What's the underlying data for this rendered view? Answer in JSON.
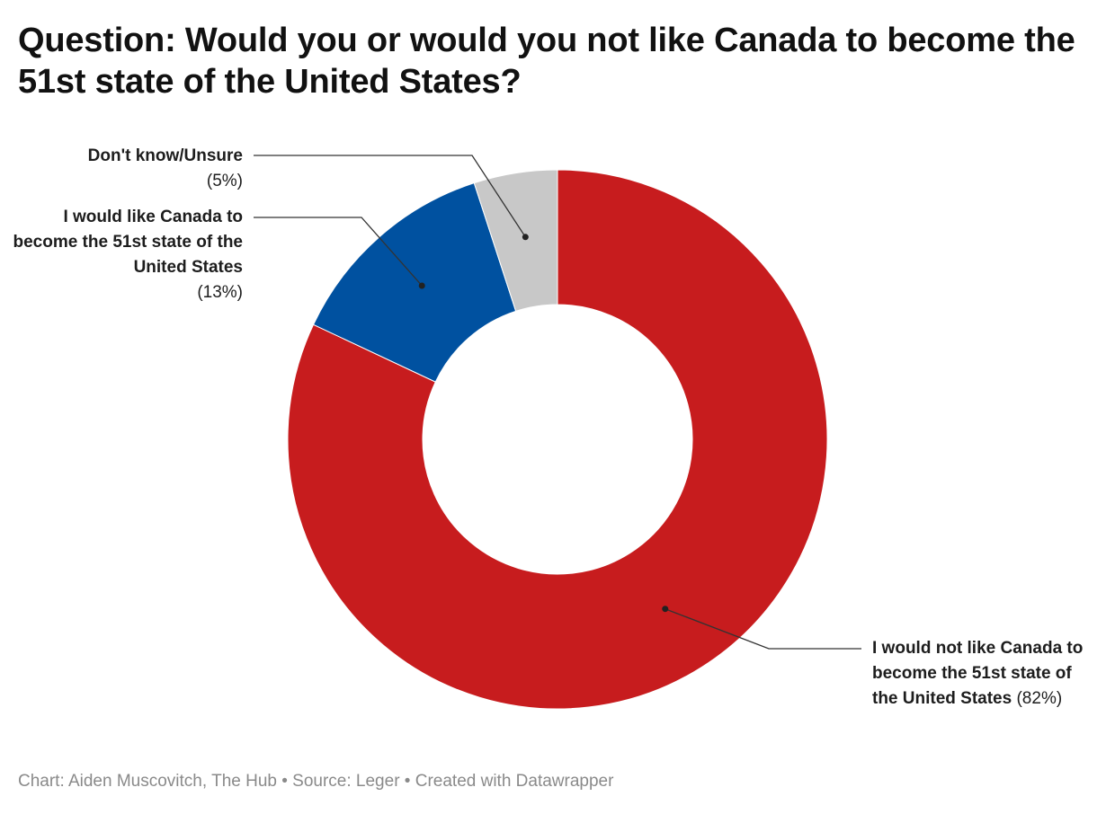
{
  "title": "Question: Would you or would you not like Canada to become the 51st state of the United States?",
  "footer": "Chart: Aiden Muscovitch, The Hub • Source: Leger • Created with Datawrapper",
  "chart_data": {
    "type": "pie",
    "donut": true,
    "slices": [
      {
        "label": "I would not like Canada to become the 51st state of the United States",
        "value": 82,
        "value_label": "(82%)",
        "color": "#c71c1e"
      },
      {
        "label": "I would like Canada to become the 51st state of the United States",
        "value": 13,
        "value_label": "(13%)",
        "color": "#0051a0"
      },
      {
        "label": "Don't know/Unsure",
        "value": 5,
        "value_label": "(5%)",
        "color": "#c8c8c8"
      }
    ]
  }
}
